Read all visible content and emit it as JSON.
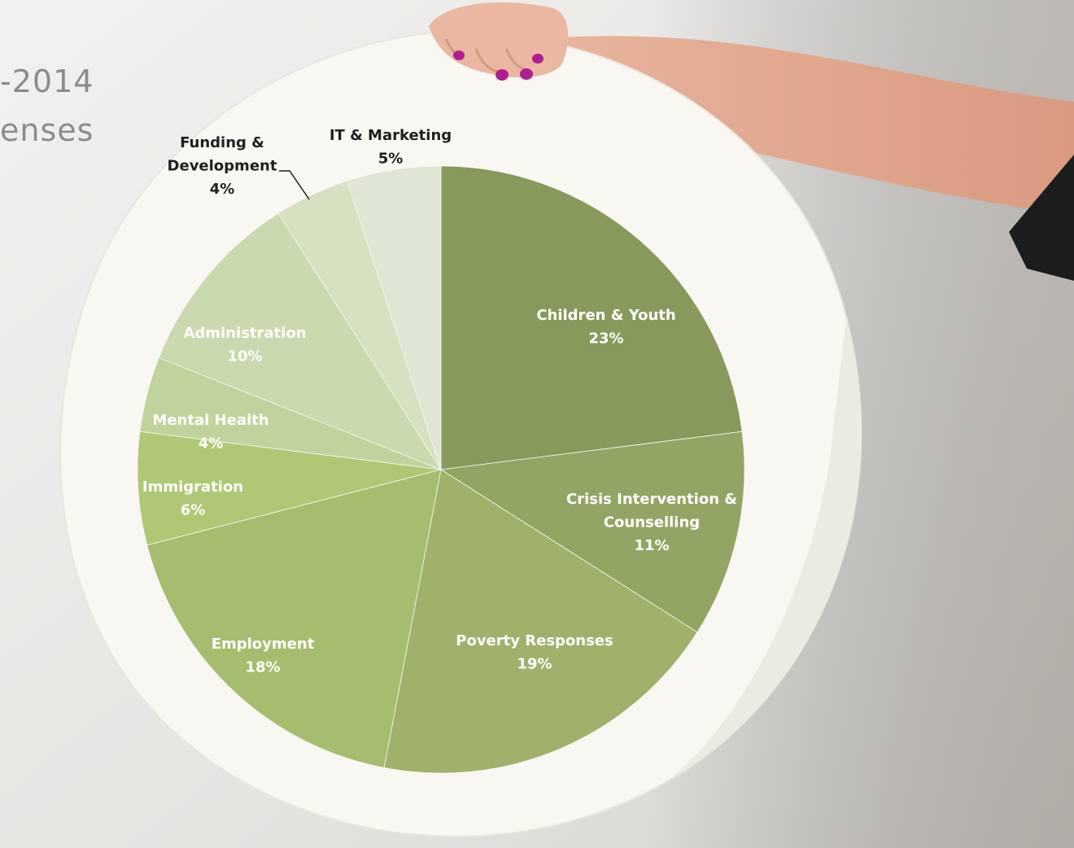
{
  "title_lines": [
    "-2014",
    "enses"
  ],
  "colors": {
    "background": "#e6e5e3",
    "board": "#f7f6f1",
    "label_dark": "#1f1f1f",
    "label_light": "#ffffff",
    "nail": "#b01e93",
    "skin": "#e9b49c"
  },
  "chart_data": {
    "type": "pie",
    "title": "",
    "start_angle_deg": 0,
    "direction": "clockwise",
    "slices": [
      {
        "name": "Children & Youth",
        "label_lines": [
          "Children & Youth"
        ],
        "value": 23,
        "percent_label": "23%",
        "color": "#879a5c",
        "label_color": "light"
      },
      {
        "name": "Crisis Intervention & Counselling",
        "label_lines": [
          "Crisis Intervention &",
          "Counselling"
        ],
        "value": 11,
        "percent_label": "11%",
        "color": "#93a564",
        "label_color": "light"
      },
      {
        "name": "Poverty Responses",
        "label_lines": [
          "Poverty Responses"
        ],
        "value": 19,
        "percent_label": "19%",
        "color": "#9fb16b",
        "label_color": "light"
      },
      {
        "name": "Employment",
        "label_lines": [
          "Employment"
        ],
        "value": 18,
        "percent_label": "18%",
        "color": "#a6bd6f",
        "label_color": "light"
      },
      {
        "name": "Immigration",
        "label_lines": [
          "Immigration"
        ],
        "value": 6,
        "percent_label": "6%",
        "color": "#b0c775",
        "label_color": "light"
      },
      {
        "name": "Mental Health",
        "label_lines": [
          "Mental Health"
        ],
        "value": 4,
        "percent_label": "4%",
        "color": "#c1d39c",
        "label_color": "light"
      },
      {
        "name": "Administration",
        "label_lines": [
          "Administration"
        ],
        "value": 10,
        "percent_label": "10%",
        "color": "#cbd9ae",
        "label_color": "light"
      },
      {
        "name": "Funding & Development",
        "label_lines": [
          "Funding &",
          "Development"
        ],
        "value": 4,
        "percent_label": "4%",
        "color": "#d5e1c1",
        "label_color": "dark"
      },
      {
        "name": "IT & Marketing",
        "label_lines": [
          "IT & Marketing"
        ],
        "value": 5,
        "percent_label": "5%",
        "color": "#dfe6d3",
        "label_color": "dark"
      }
    ]
  }
}
